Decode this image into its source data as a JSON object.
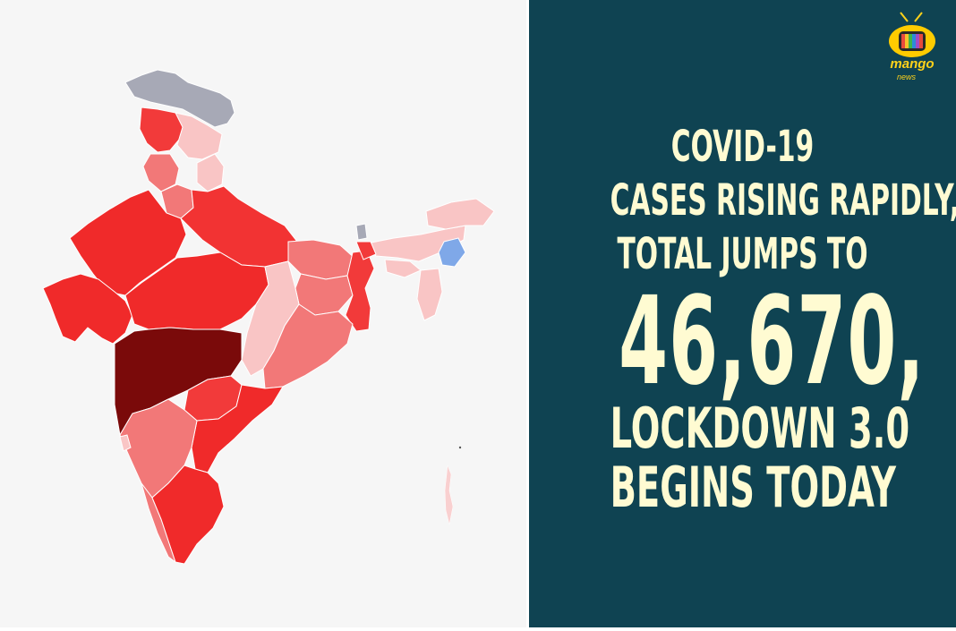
{
  "headline": {
    "line1": "COVID-19",
    "line2": "CASES RISING RAPIDLY,",
    "line3": "TOTAL JUMPS TO",
    "figure": "46,670,",
    "line5": "LOCKDOWN 3.0",
    "line6": "BEGINS TODAY"
  },
  "logo": {
    "brand": "mango",
    "sub": "news"
  },
  "colors": {
    "panel_background": "#0f4352",
    "headline_text": "#fffbd2",
    "map_background": "#f6f6f6",
    "darkest_state": "#7a0a0a",
    "high_state": "#f02a2a",
    "medium_state": "#f26a6a",
    "low_state": "#f9b3b3",
    "no_data_state": "#a7a9b6",
    "blue_state": "#7fa8e8"
  },
  "map": {
    "icon": "india-choropleth-map"
  }
}
